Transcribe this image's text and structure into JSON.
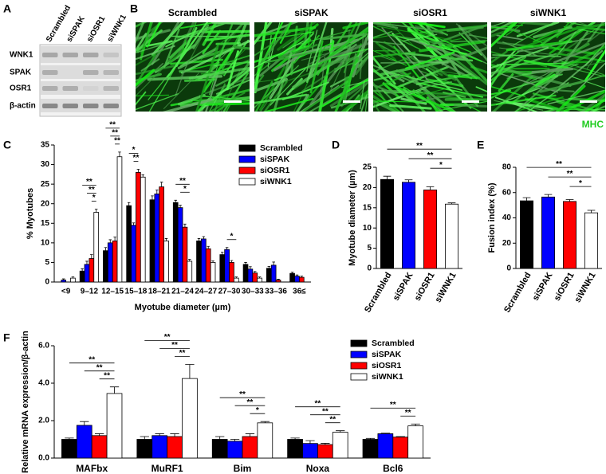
{
  "figure": {
    "panel_labels": [
      "A",
      "B",
      "C",
      "D",
      "E",
      "F"
    ]
  },
  "blot": {
    "lanes": [
      "Scrambled",
      "siSPAK",
      "siOSR1",
      "siWNK1"
    ],
    "proteins": [
      "WNK1",
      "SPAK",
      "OSR1",
      "β-actin"
    ]
  },
  "images": {
    "labels": [
      "Scrambled",
      "siSPAK",
      "siOSR1",
      "siWNK1"
    ],
    "stain": "MHC"
  },
  "chart_data": [
    {
      "type": "bar",
      "ylabel": "% Myotubes",
      "xlabel": "Myotube diameter (µm)",
      "legend": "upper right",
      "categories": [
        "<9",
        "9–12",
        "12–15",
        "15–18",
        "18–21",
        "21–24",
        "24–27",
        "27–30",
        "30–33",
        "33–36",
        "36≤"
      ],
      "series": [
        {
          "name": "Scrambled",
          "color": "#000000",
          "values": [
            0,
            2.8,
            8,
            19.5,
            21,
            20.3,
            10.5,
            7,
            4.5,
            3.5,
            2.2
          ],
          "errors": [
            0,
            0.6,
            0.8,
            0.8,
            1,
            0.6,
            0.6,
            0.6,
            0.5,
            0.5,
            0.3
          ]
        },
        {
          "name": "siSPAK",
          "color": "#0000ff",
          "values": [
            0.5,
            4.5,
            10,
            14.5,
            22.5,
            19,
            11,
            8.3,
            3.3,
            4.3,
            1.5
          ],
          "errors": [
            0.3,
            0.8,
            0.8,
            0.6,
            1,
            0.6,
            0.6,
            0.5,
            0.6,
            0.8,
            0.3
          ]
        },
        {
          "name": "siOSR1",
          "color": "#ff0000",
          "values": [
            0,
            6,
            10.5,
            28,
            24.3,
            14,
            8.5,
            5,
            2.3,
            0.5,
            1.2
          ],
          "errors": [
            0,
            1,
            1,
            0.8,
            1.2,
            0.8,
            0.6,
            0.5,
            0.4,
            0.2,
            0.3
          ]
        },
        {
          "name": "siWNK1",
          "color": "#ffffff",
          "values": [
            1,
            17.8,
            32,
            26.8,
            10.5,
            5.3,
            5,
            1,
            1,
            0,
            0
          ],
          "errors": [
            0.3,
            0.8,
            1.2,
            0.6,
            0.6,
            0.5,
            0.4,
            0.3,
            0.3,
            0,
            0
          ]
        }
      ],
      "ylim": [
        0,
        35
      ],
      "yticks": [
        0,
        5,
        10,
        15,
        20,
        25,
        30,
        35
      ],
      "annotations": [
        {
          "category": "9–12",
          "from": "siOSR1",
          "to": "siWNK1",
          "label": "*"
        },
        {
          "category": "9–12",
          "from": "siSPAK",
          "to": "siWNK1",
          "label": "**"
        },
        {
          "category": "9–12",
          "from": "Scrambled",
          "to": "siWNK1",
          "label": "**"
        },
        {
          "category": "12–15",
          "from": "siOSR1",
          "to": "siWNK1",
          "label": "**"
        },
        {
          "category": "12–15",
          "from": "siSPAK",
          "to": "siWNK1",
          "label": "**"
        },
        {
          "category": "12–15",
          "from": "Scrambled",
          "to": "siWNK1",
          "label": "**"
        },
        {
          "category": "15–18",
          "from": "siSPAK",
          "to": "siOSR1",
          "label": "**"
        },
        {
          "category": "15–18",
          "from": "Scrambled",
          "to": "siOSR1",
          "label": "*"
        },
        {
          "category": "21–24",
          "from": "siSPAK",
          "to": "siWNK1",
          "label": "*"
        },
        {
          "category": "21–24",
          "from": "Scrambled",
          "to": "siWNK1",
          "label": "**"
        },
        {
          "category": "27–30",
          "from": "siSPAK",
          "to": "siWNK1",
          "label": "*"
        }
      ]
    },
    {
      "type": "bar",
      "ylabel": "Myotube diameter (µm)",
      "categories": [
        "Scrambled",
        "siSPAK",
        "siOSR1",
        "siWNK1"
      ],
      "colors": [
        "#000000",
        "#0000ff",
        "#ff0000",
        "#ffffff"
      ],
      "values": [
        22,
        21.3,
        19.4,
        15.9
      ],
      "errors": [
        0.8,
        0.6,
        0.8,
        0.3
      ],
      "ylim": [
        0,
        25
      ],
      "yticks": [
        0,
        5,
        10,
        15,
        20,
        25
      ],
      "annotations": [
        {
          "from": "siOSR1",
          "to": "siWNK1",
          "label": "*"
        },
        {
          "from": "siSPAK",
          "to": "siWNK1",
          "label": "**"
        },
        {
          "from": "Scrambled",
          "to": "siWNK1",
          "label": "**"
        }
      ]
    },
    {
      "type": "bar",
      "ylabel": "Fusion index (%)",
      "categories": [
        "Scrambled",
        "siSPAK",
        "siOSR1",
        "siWNK1"
      ],
      "colors": [
        "#000000",
        "#0000ff",
        "#ff0000",
        "#ffffff"
      ],
      "values": [
        53.5,
        56.5,
        53,
        44
      ],
      "errors": [
        2.5,
        2,
        1.5,
        2
      ],
      "ylim": [
        0,
        80
      ],
      "yticks": [
        0,
        20,
        40,
        60,
        80
      ],
      "annotations": [
        {
          "from": "siOSR1",
          "to": "siWNK1",
          "label": "*"
        },
        {
          "from": "siSPAK",
          "to": "siWNK1",
          "label": "**"
        },
        {
          "from": "Scrambled",
          "to": "siWNK1",
          "label": "**"
        }
      ]
    },
    {
      "type": "bar",
      "ylabel": "Relative mRNA expression/β-actin",
      "legend": "upper right",
      "categories": [
        "MAFbx",
        "MuRF1",
        "Bim",
        "Noxa",
        "Bcl6"
      ],
      "series": [
        {
          "name": "Scrambled",
          "color": "#000000",
          "values": [
            1,
            1,
            1,
            1,
            1
          ],
          "errors": [
            0.07,
            0.15,
            0.15,
            0.07,
            0.05
          ]
        },
        {
          "name": "siSPAK",
          "color": "#0000ff",
          "values": [
            1.75,
            1.2,
            0.9,
            0.78,
            1.3
          ],
          "errors": [
            0.2,
            0.1,
            0.1,
            0.15,
            0.03
          ]
        },
        {
          "name": "siOSR1",
          "color": "#ff0000",
          "values": [
            1.2,
            1.15,
            1.15,
            0.72,
            1.12
          ],
          "errors": [
            0.1,
            0.15,
            0.15,
            0.07,
            0.03
          ]
        },
        {
          "name": "siWNK1",
          "color": "#ffffff",
          "values": [
            3.45,
            4.25,
            1.88,
            1.38,
            1.72
          ],
          "errors": [
            0.35,
            0.75,
            0.07,
            0.08,
            0.1
          ]
        }
      ],
      "ylim": [
        0,
        6
      ],
      "yticks": [
        {
          "value": 0,
          "label": "0.0"
        },
        {
          "value": 2,
          "label": "2.0"
        },
        {
          "value": 4,
          "label": "4.0"
        },
        {
          "value": 6,
          "label": "6.0"
        }
      ],
      "annotations": [
        {
          "category": "MAFbx",
          "from": "siOSR1",
          "to": "siWNK1",
          "label": "**"
        },
        {
          "category": "MAFbx",
          "from": "siSPAK",
          "to": "siWNK1",
          "label": "**"
        },
        {
          "category": "MAFbx",
          "from": "Scrambled",
          "to": "siWNK1",
          "label": "**"
        },
        {
          "category": "MuRF1",
          "from": "siOSR1",
          "to": "siWNK1",
          "label": "**"
        },
        {
          "category": "MuRF1",
          "from": "siSPAK",
          "to": "siWNK1",
          "label": "**"
        },
        {
          "category": "MuRF1",
          "from": "Scrambled",
          "to": "siWNK1",
          "label": "**"
        },
        {
          "category": "Bim",
          "from": "siOSR1",
          "to": "siWNK1",
          "label": "*"
        },
        {
          "category": "Bim",
          "from": "siSPAK",
          "to": "siWNK1",
          "label": "**"
        },
        {
          "category": "Bim",
          "from": "Scrambled",
          "to": "siWNK1",
          "label": "**"
        },
        {
          "category": "Noxa",
          "from": "siOSR1",
          "to": "siWNK1",
          "label": "**"
        },
        {
          "category": "Noxa",
          "from": "siSPAK",
          "to": "siWNK1",
          "label": "**"
        },
        {
          "category": "Noxa",
          "from": "Scrambled",
          "to": "siWNK1",
          "label": "**"
        },
        {
          "category": "Bcl6",
          "from": "siOSR1",
          "to": "siWNK1",
          "label": "**"
        },
        {
          "category": "Bcl6",
          "from": "Scrambled",
          "to": "siWNK1",
          "label": "**"
        }
      ]
    }
  ]
}
